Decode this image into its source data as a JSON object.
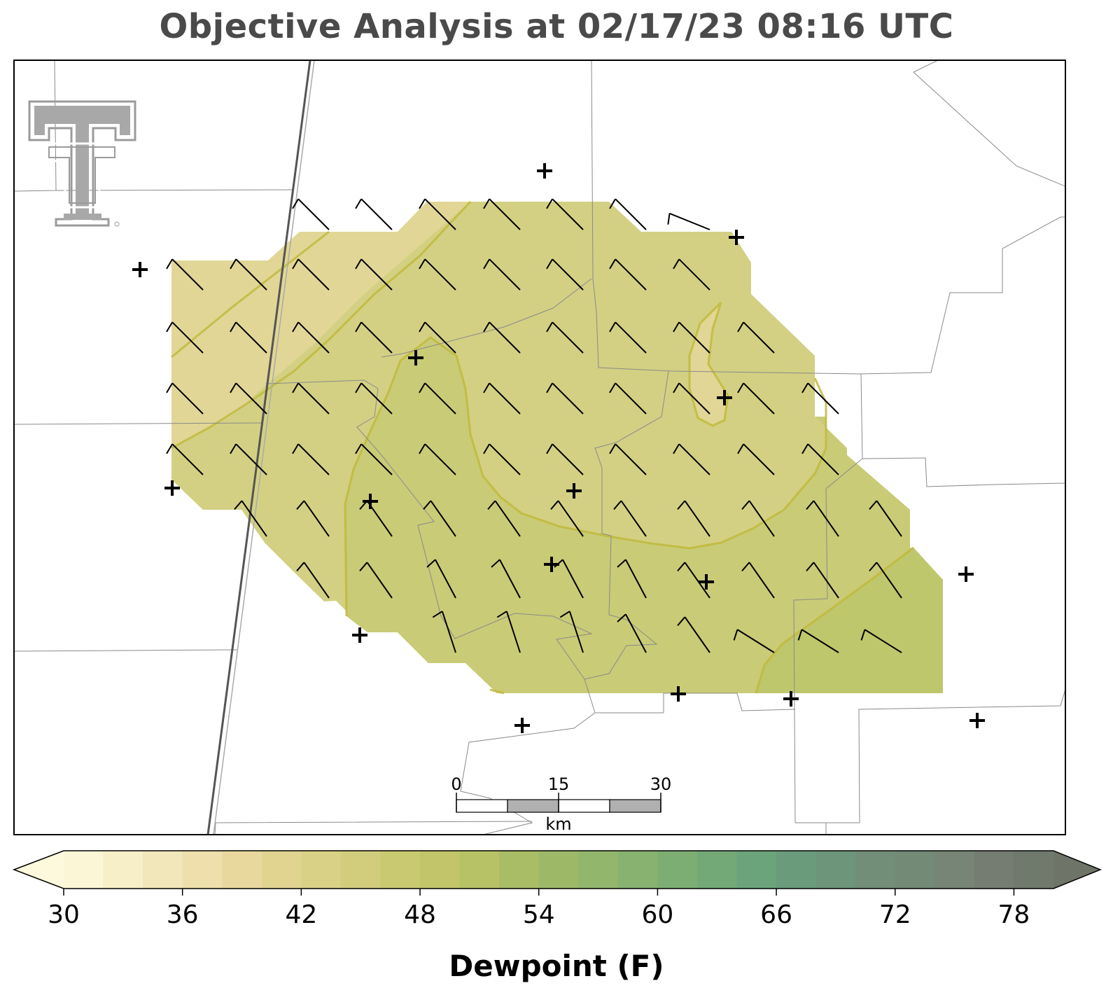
{
  "title": "Objective Analysis at 02/17/23 08:16 UTC",
  "scale_bar": {
    "labels": [
      "0",
      "15",
      "30"
    ],
    "unit": "km"
  },
  "colorbar": {
    "label": "Dewpoint (F)",
    "ticks": [
      "30",
      "36",
      "42",
      "48",
      "54",
      "60",
      "66",
      "72",
      "78"
    ],
    "min": 30,
    "max": 80,
    "step": 2,
    "extend": "both",
    "colors": [
      "#fbf6d6",
      "#f7efc8",
      "#f2e7ba",
      "#eedfac",
      "#e9d89e",
      "#e1d491",
      "#d9d186",
      "#d1cd7d",
      "#c9c972",
      "#c2c56a",
      "#b7c266",
      "#a9bc66",
      "#9db968",
      "#93b66d",
      "#87b270",
      "#7cad73",
      "#73a877",
      "#6ba47a",
      "#6a9c7c",
      "#6d957a",
      "#728e79",
      "#738a77",
      "#768575",
      "#757d72",
      "#6f7a6d"
    ],
    "extend_low_color": "#fdf9dc",
    "extend_high_color": "#6f7468"
  },
  "field": {
    "fill_colors": {
      "dew_41_42": "#e1d695",
      "dew_43_44": "#d3d083",
      "dew_45_46": "#c9cb76",
      "dew_47_48": "#bfc76c"
    },
    "contour_color": "#c0ba3c"
  },
  "logo": {
    "name": "Texas Tech Double T",
    "color": "#9b9b9b"
  },
  "stations_count": 17,
  "barbs_note": "wind barbs from northwest, 10 kt flags"
}
